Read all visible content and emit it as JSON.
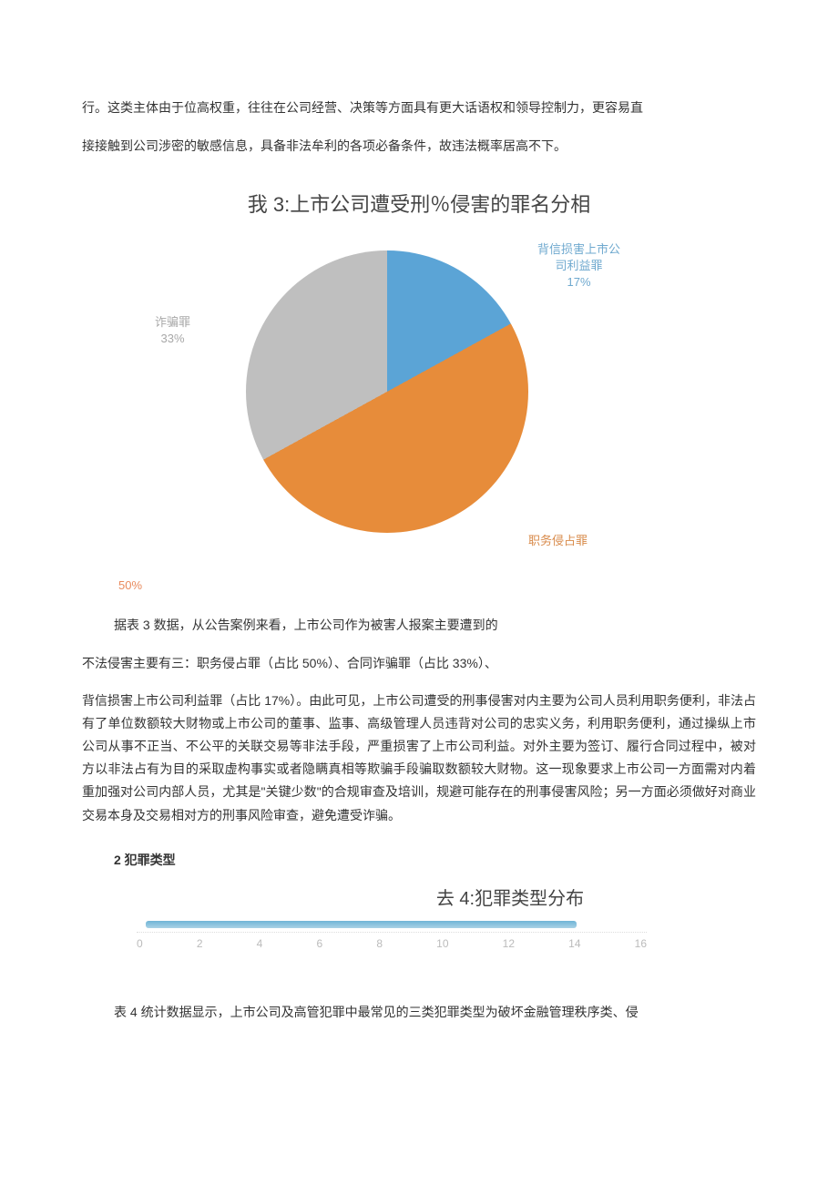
{
  "intro": {
    "line1": "行。这类主体由于位高权重，往往在公司经营、决策等方面具有更大话语权和领导控制力，更容易直",
    "line2": "接接触到公司涉密的敏感信息，具备非法牟利的各项必备条件，故违法概率居高不下。"
  },
  "chart3": {
    "title": "我 3:上市公司遭受刑％侵害的罪名分相",
    "type": "pie",
    "slices": [
      {
        "label_lines": [
          "背信损害上市公",
          "司利益罪"
        ],
        "pct_text": "17%",
        "value": 17,
        "color": "#5ba4d6"
      },
      {
        "label_lines": [
          "职务侵占罪"
        ],
        "pct_text": "",
        "value": 50,
        "color": "#e78c3a"
      },
      {
        "label_lines": [
          "诈骗罪"
        ],
        "pct_text": "33%",
        "value": 33,
        "color": "#bfbfbf"
      }
    ],
    "fifty_label": "50%",
    "label_color_a": "#6fa9cf",
    "label_color_b": "#d88a4a",
    "label_color_c": "#a8a8a8",
    "background": "#ffffff"
  },
  "body": {
    "p1": "据表 3 数据，从公告案例来看，上市公司作为被害人报案主要遭到的",
    "p2": "不法侵害主要有三：职务侵占罪（占比 50%）、合同诈骗罪（占比 33%）、",
    "p3": "背信损害上市公司利益罪（占比 17%）。由此可见，上市公司遭受的刑事侵害对内主要为公司人员利用职务便利，非法占有了单位数额较大财物或上市公司的董事、监事、高级管理人员违背对公司的忠实义务，利用职务便利，通过操纵上市公司从事不正当、不公平的关联交易等非法手段，严重损害了上市公司利益。对外主要为签订、履行合同过程中，被对方以非法占有为目的采取虚构事实或者隐瞒真相等欺骗手段骗取数额较大财物。这一现象要求上市公司一方面需对内着重加强对公司内部人员，尤其是\"关键少数\"的合规审查及培训，规避可能存在的刑事侵害风险；另一方面必须做好对商业交易本身及交易相对方的刑事风险审查，避免遭受诈骗。"
  },
  "section2_heading": "2 犯罪类型",
  "chart4": {
    "title": "去 4:犯罪类型分布",
    "type": "axis-bar",
    "bar_color": "#6fb4d6",
    "bar_value": 14,
    "xmax": 16,
    "ticks": [
      "0",
      "2",
      "4",
      "6",
      "8",
      "10",
      "12",
      "14",
      "16"
    ],
    "tick_color": "#bbbbbb",
    "grid_color": "#dddddd"
  },
  "closing": "表 4 统计数据显示，上市公司及高管犯罪中最常见的三类犯罪类型为破坏金融管理秩序类、侵"
}
